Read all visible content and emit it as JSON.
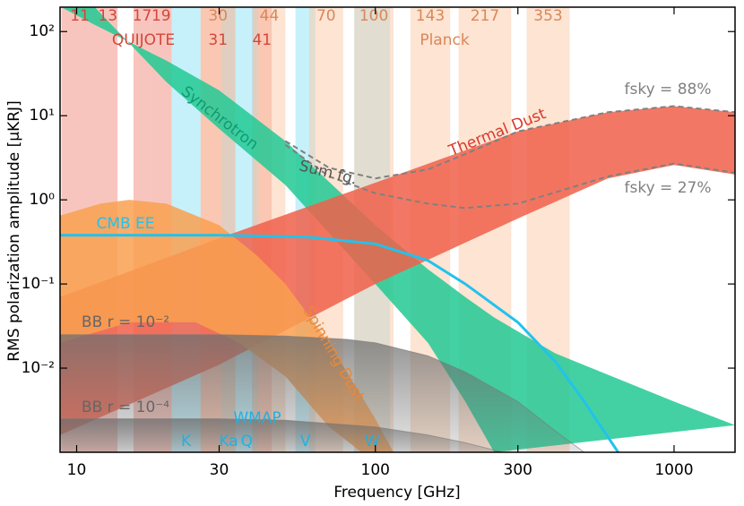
{
  "chart_data": {
    "type": "line",
    "xlabel": "Frequency [GHz]",
    "ylabel": "RMS polarization amplitude [μKRJ]",
    "xscale": "log",
    "yscale": "log",
    "xlim": [
      8.8,
      1600
    ],
    "ylim": [
      0.001,
      195
    ],
    "xticks": [
      10,
      30,
      100,
      300,
      1000
    ],
    "yticks": [
      {
        "value": 0.01,
        "label": "10⁻²"
      },
      {
        "value": 0.1,
        "label": "10⁻¹"
      },
      {
        "value": 1,
        "label": "10⁰"
      },
      {
        "value": 10,
        "label": "10¹"
      },
      {
        "value": 100,
        "label": "10²"
      }
    ],
    "instruments": [
      {
        "name": "QUIJOTE",
        "color": "#f28b7e",
        "label_color": "#d4463a",
        "bands": [
          {
            "label": "11",
            "range": [
              8.9,
              11.8
            ]
          },
          {
            "label": "13",
            "range": [
              11.8,
              13.7
            ]
          },
          {
            "label": "17",
            "range": [
              15.5,
              17.7
            ]
          },
          {
            "label": "19",
            "range": [
              17.7,
              20.8
            ]
          },
          {
            "label": "31",
            "range": [
              26,
              34
            ]
          },
          {
            "label": "41",
            "range": [
              38.7,
              45
            ]
          }
        ]
      },
      {
        "name": "WMAP",
        "color": "#8fe3f5",
        "label_color": "#22b0e0",
        "bands": [
          {
            "label": "K",
            "range": [
              20.8,
              26
            ]
          },
          {
            "label": "Ka",
            "range": [
              30.6,
              34
            ]
          },
          {
            "label": "Q",
            "range": [
              34,
              40.5
            ]
          },
          {
            "label": "V",
            "range": [
              54,
              63
            ]
          },
          {
            "label": "W",
            "range": [
              85,
              112
            ]
          }
        ]
      },
      {
        "name": "Planck",
        "color": "#fbc9a8",
        "label_color": "#d9875a",
        "bands": [
          {
            "label": "30",
            "range": [
              26,
              34
            ]
          },
          {
            "label": "44",
            "range": [
              39,
              50
            ]
          },
          {
            "label": "70",
            "range": [
              60,
              78
            ]
          },
          {
            "label": "100",
            "range": [
              85,
              115
            ]
          },
          {
            "label": "143",
            "range": [
              131,
              178
            ]
          },
          {
            "label": "217",
            "range": [
              190,
              285
            ]
          },
          {
            "label": "353",
            "range": [
              321,
              447
            ]
          }
        ]
      }
    ],
    "series": [
      {
        "name": "Synchrotron",
        "kind": "band",
        "color": "#22c994",
        "upper": {
          "x": [
            9,
            11.5,
            20,
            30,
            50,
            100,
            150,
            200,
            250,
            400,
            1000,
            1600
          ],
          "values": [
            190,
            120,
            45,
            20,
            5,
            0.5,
            0.15,
            0.07,
            0.04,
            0.015,
            0.004,
            0.0021
          ]
        },
        "lower": {
          "x": [
            11.5,
            20,
            30,
            50,
            100,
            150,
            200,
            250
          ],
          "values": [
            195,
            25,
            7,
            1.5,
            0.1,
            0.02,
            0.004,
            0.001
          ]
        }
      },
      {
        "name": "Thermal Dust",
        "kind": "band",
        "color": "#f0604a",
        "upper": {
          "x": [
            8.8,
            30,
            100,
            300,
            600,
            1000,
            1600
          ],
          "values": [
            0.07,
            0.35,
            1.6,
            6.5,
            11,
            13,
            11
          ]
        },
        "lower": {
          "x": [
            8.8,
            30,
            100,
            300,
            600,
            1000,
            1600
          ],
          "values": [
            0.0016,
            0.011,
            0.1,
            0.6,
            1.8,
            2.6,
            2.0
          ]
        }
      },
      {
        "name": "Spinning Dust",
        "kind": "band",
        "color": "#f9a050",
        "upper": {
          "x": [
            8.8,
            12,
            15,
            20,
            30,
            40,
            50,
            70,
            100,
            115
          ],
          "values": [
            0.65,
            0.9,
            1.0,
            0.9,
            0.5,
            0.22,
            0.1,
            0.02,
            0.0025,
            0.001
          ]
        },
        "lower": {
          "x": [
            8.8,
            15,
            25,
            35,
            50,
            70,
            90
          ],
          "values": [
            0.02,
            0.035,
            0.035,
            0.02,
            0.008,
            0.002,
            0.001
          ]
        }
      },
      {
        "name": "CMB EE",
        "kind": "line",
        "color": "#22c2ec",
        "x": [
          8.8,
          30,
          60,
          100,
          150,
          200,
          300,
          400,
          500,
          650
        ],
        "values": [
          0.38,
          0.38,
          0.36,
          0.3,
          0.19,
          0.1,
          0.035,
          0.012,
          0.004,
          0.001
        ]
      },
      {
        "name": "BB r = 10⁻²",
        "kind": "fill",
        "color": "#7a7a7a",
        "x": [
          8.8,
          30,
          50,
          80,
          100,
          150,
          200,
          300,
          400,
          500
        ],
        "values": [
          0.025,
          0.025,
          0.024,
          0.022,
          0.02,
          0.014,
          0.009,
          0.004,
          0.0018,
          0.001
        ]
      },
      {
        "name": "BB r = 10⁻⁴",
        "kind": "fill",
        "color": "#7a7a7a",
        "x": [
          8.8,
          30,
          50,
          100,
          150,
          200,
          300
        ],
        "values": [
          0.0025,
          0.0025,
          0.0024,
          0.002,
          0.0016,
          0.0013,
          0.0009
        ]
      },
      {
        "name": "Sum fg.",
        "kind": "dashed",
        "color": "#808080",
        "x": [
          50,
          70,
          100,
          150,
          200,
          300,
          600,
          1000,
          1600
        ],
        "lines": [
          {
            "label": "fsky = 88%",
            "values": [
              5,
              2.4,
              1.8,
              2.3,
              3.5,
              6.5,
              11,
              13,
              11
            ]
          },
          {
            "label": "fsky = 27%",
            "values": [
              4.5,
              1.9,
              1.2,
              0.9,
              0.8,
              0.9,
              1.9,
              2.7,
              2.1
            ]
          }
        ]
      }
    ]
  }
}
